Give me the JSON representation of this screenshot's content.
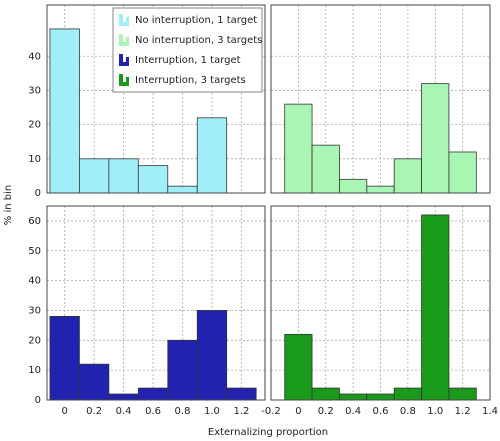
{
  "xlabel": "Externalizing proportion",
  "ylabel": "% in bin",
  "chart_data": [
    {
      "type": "histogram",
      "name": "No interruption, 1 target",
      "color": "#a0eef8",
      "bins": [
        -0.1,
        0.1,
        0.3,
        0.5,
        0.7,
        0.9,
        1.1,
        1.3
      ],
      "values": [
        48,
        10,
        10,
        8,
        2,
        22,
        0
      ],
      "xlim": [
        -0.12,
        1.36
      ],
      "ylim": [
        0,
        55
      ],
      "xticks": [
        0,
        0.2,
        0.4,
        0.6,
        0.8,
        {
          "value": 1,
          "label": "1.0"
        },
        1.2
      ],
      "yticks": [
        0,
        10,
        20,
        30,
        40
      ],
      "grid": true,
      "legend": "top-right"
    },
    {
      "type": "histogram",
      "name": "No interruption, 3 targets",
      "color": "#a8f5b4",
      "bins": [
        -0.1,
        0.1,
        0.3,
        0.5,
        0.7,
        0.9,
        1.1,
        1.3
      ],
      "values": [
        26,
        14,
        4,
        2,
        10,
        32,
        12
      ],
      "xlim": [
        -0.2,
        1.4
      ],
      "ylim": [
        0,
        55
      ],
      "xticks": [
        -0.2,
        0,
        0.2,
        0.4,
        0.6,
        0.8,
        {
          "value": 1,
          "label": "1.0"
        },
        1.2,
        1.4
      ],
      "yticks": [
        0,
        10,
        20,
        30,
        40
      ],
      "grid": true
    },
    {
      "type": "histogram",
      "name": "Interruption, 1 target",
      "color": "#2222b0",
      "bins": [
        -0.1,
        0.1,
        0.3,
        0.5,
        0.7,
        0.9,
        1.1,
        1.3
      ],
      "values": [
        28,
        12,
        2,
        4,
        20,
        30,
        4
      ],
      "xlim": [
        -0.12,
        1.36
      ],
      "ylim": [
        0,
        65
      ],
      "xticks": [
        0,
        0.2,
        0.4,
        0.6,
        0.8,
        {
          "value": 1,
          "label": "1.0"
        },
        1.2
      ],
      "yticks": [
        0,
        10,
        20,
        30,
        40,
        50,
        60
      ],
      "grid": true
    },
    {
      "type": "histogram",
      "name": "Interruption, 3 targets",
      "color": "#1a9a1a",
      "bins": [
        -0.1,
        0.1,
        0.3,
        0.5,
        0.7,
        0.9,
        1.1,
        1.3
      ],
      "values": [
        22,
        4,
        2,
        2,
        4,
        62,
        4
      ],
      "xlim": [
        -0.2,
        1.4
      ],
      "ylim": [
        0,
        65
      ],
      "xticks": [
        -0.2,
        0,
        0.2,
        0.4,
        0.6,
        0.8,
        {
          "value": 1,
          "label": "1.0"
        },
        1.2,
        1.4
      ],
      "yticks": [
        0,
        10,
        20,
        30,
        40,
        50,
        60
      ],
      "grid": true
    }
  ]
}
